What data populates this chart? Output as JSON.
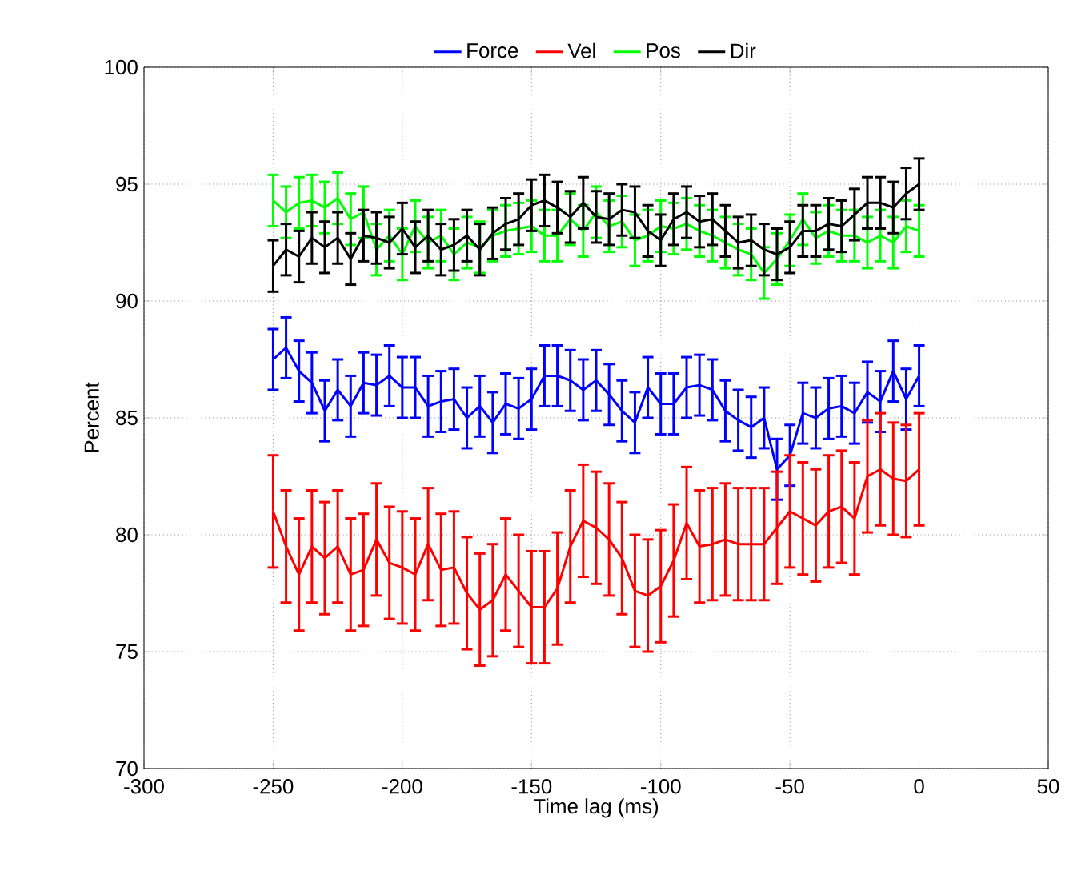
{
  "chart_data": {
    "type": "line",
    "xlabel": "Time lag (ms)",
    "ylabel": "Percent",
    "x": [
      -250,
      -245,
      -240,
      -235,
      -230,
      -225,
      -220,
      -215,
      -210,
      -205,
      -200,
      -195,
      -190,
      -185,
      -180,
      -175,
      -170,
      -165,
      -160,
      -155,
      -150,
      -145,
      -140,
      -135,
      -130,
      -125,
      -120,
      -115,
      -110,
      -105,
      -100,
      -95,
      -90,
      -85,
      -80,
      -75,
      -70,
      -65,
      -60,
      -55,
      -50,
      -45,
      -40,
      -35,
      -30,
      -25,
      -20,
      -15,
      -10,
      -5,
      0
    ],
    "series": [
      {
        "name": "Force",
        "color": "#0000ff",
        "values": [
          87.5,
          88.0,
          87.0,
          86.5,
          85.3,
          86.2,
          85.5,
          86.5,
          86.4,
          86.8,
          86.3,
          86.3,
          85.5,
          85.7,
          85.8,
          85.0,
          85.5,
          84.8,
          85.6,
          85.4,
          85.8,
          86.8,
          86.8,
          86.6,
          86.2,
          86.6,
          86.0,
          85.3,
          84.8,
          86.3,
          85.6,
          85.6,
          86.3,
          86.4,
          86.2,
          85.3,
          84.9,
          84.6,
          85.0,
          82.8,
          83.4,
          85.2,
          85.0,
          85.4,
          85.5,
          85.2,
          86.1,
          85.7,
          87.0,
          85.8,
          86.8
        ],
        "errors": [
          1.3,
          1.3,
          1.3,
          1.3,
          1.3,
          1.3,
          1.3,
          1.3,
          1.3,
          1.3,
          1.3,
          1.3,
          1.3,
          1.3,
          1.3,
          1.3,
          1.3,
          1.3,
          1.3,
          1.3,
          1.3,
          1.3,
          1.3,
          1.3,
          1.3,
          1.3,
          1.3,
          1.3,
          1.3,
          1.3,
          1.3,
          1.3,
          1.3,
          1.3,
          1.3,
          1.3,
          1.3,
          1.3,
          1.3,
          1.3,
          1.3,
          1.3,
          1.3,
          1.3,
          1.3,
          1.3,
          1.3,
          1.3,
          1.3,
          1.3,
          1.3
        ]
      },
      {
        "name": "Vel",
        "color": "#ff0000",
        "values": [
          81.0,
          79.5,
          78.3,
          79.5,
          79.0,
          79.5,
          78.3,
          78.5,
          79.8,
          78.8,
          78.6,
          78.3,
          79.6,
          78.5,
          78.6,
          77.5,
          76.8,
          77.2,
          78.3,
          77.6,
          76.9,
          76.9,
          77.7,
          79.5,
          80.6,
          80.3,
          79.8,
          79.0,
          77.6,
          77.4,
          77.8,
          78.9,
          80.5,
          79.5,
          79.6,
          79.8,
          79.6,
          79.6,
          79.6,
          80.3,
          81.0,
          80.7,
          80.4,
          81.0,
          81.2,
          80.7,
          82.5,
          82.8,
          82.4,
          82.3,
          82.8
        ],
        "errors": [
          2.4,
          2.4,
          2.4,
          2.4,
          2.4,
          2.4,
          2.4,
          2.4,
          2.4,
          2.4,
          2.4,
          2.4,
          2.4,
          2.4,
          2.4,
          2.4,
          2.4,
          2.4,
          2.4,
          2.4,
          2.4,
          2.4,
          2.4,
          2.4,
          2.4,
          2.4,
          2.4,
          2.4,
          2.4,
          2.4,
          2.4,
          2.4,
          2.4,
          2.4,
          2.4,
          2.4,
          2.4,
          2.4,
          2.4,
          2.4,
          2.4,
          2.4,
          2.4,
          2.4,
          2.4,
          2.4,
          2.4,
          2.4,
          2.4,
          2.4,
          2.4
        ]
      },
      {
        "name": "Pos",
        "color": "#00ff00",
        "values": [
          94.3,
          93.8,
          94.2,
          94.3,
          94.0,
          94.4,
          93.5,
          93.8,
          92.2,
          92.8,
          92.0,
          93.2,
          92.5,
          92.8,
          92.0,
          92.5,
          92.3,
          92.8,
          93.0,
          93.1,
          93.2,
          92.8,
          92.8,
          93.5,
          93.0,
          93.8,
          93.2,
          93.4,
          92.6,
          92.8,
          93.2,
          93.1,
          93.3,
          93.0,
          92.8,
          92.5,
          92.2,
          92.0,
          91.2,
          91.8,
          92.6,
          93.5,
          92.7,
          93.0,
          92.8,
          92.8,
          92.5,
          92.8,
          92.5,
          93.2,
          93.0
        ],
        "errors": [
          1.1,
          1.1,
          1.1,
          1.1,
          1.1,
          1.1,
          1.1,
          1.1,
          1.1,
          1.1,
          1.1,
          1.1,
          1.1,
          1.1,
          1.1,
          1.1,
          1.1,
          1.1,
          1.1,
          1.1,
          1.1,
          1.1,
          1.1,
          1.1,
          1.1,
          1.1,
          1.1,
          1.1,
          1.1,
          1.1,
          1.1,
          1.1,
          1.1,
          1.1,
          1.1,
          1.1,
          1.1,
          1.1,
          1.1,
          1.1,
          1.1,
          1.1,
          1.1,
          1.1,
          1.1,
          1.1,
          1.1,
          1.1,
          1.1,
          1.1,
          1.1
        ]
      },
      {
        "name": "Dir",
        "color": "#000000",
        "values": [
          91.5,
          92.2,
          91.9,
          92.7,
          92.3,
          92.7,
          91.8,
          92.8,
          92.7,
          92.5,
          93.1,
          92.3,
          92.8,
          92.2,
          92.4,
          92.8,
          92.2,
          92.9,
          93.3,
          93.5,
          94.1,
          94.3,
          94.0,
          93.6,
          94.2,
          93.6,
          93.5,
          93.9,
          93.8,
          93.0,
          92.6,
          93.5,
          93.8,
          93.4,
          93.5,
          93.0,
          92.5,
          92.6,
          92.2,
          92.0,
          92.3,
          93.0,
          93.0,
          93.3,
          93.2,
          93.7,
          94.2,
          94.2,
          94.0,
          94.6,
          95.0
        ],
        "errors": [
          1.1,
          1.1,
          1.1,
          1.1,
          1.1,
          1.1,
          1.1,
          1.1,
          1.1,
          1.1,
          1.1,
          1.1,
          1.1,
          1.1,
          1.1,
          1.1,
          1.1,
          1.1,
          1.1,
          1.1,
          1.1,
          1.1,
          1.1,
          1.1,
          1.1,
          1.1,
          1.1,
          1.1,
          1.1,
          1.1,
          1.1,
          1.1,
          1.1,
          1.1,
          1.1,
          1.1,
          1.1,
          1.1,
          1.1,
          1.1,
          1.1,
          1.1,
          1.1,
          1.1,
          1.1,
          1.1,
          1.1,
          1.1,
          1.1,
          1.1,
          1.1
        ]
      }
    ],
    "xlim": [
      -300,
      50
    ],
    "xticks": [
      -300,
      -250,
      -200,
      -150,
      -100,
      -50,
      0,
      50
    ],
    "ylim": [
      70,
      100
    ],
    "yticks": [
      70,
      75,
      80,
      85,
      90,
      95,
      100
    ],
    "grid": true,
    "legend": "top",
    "marker": "none",
    "line_style": "solid"
  }
}
